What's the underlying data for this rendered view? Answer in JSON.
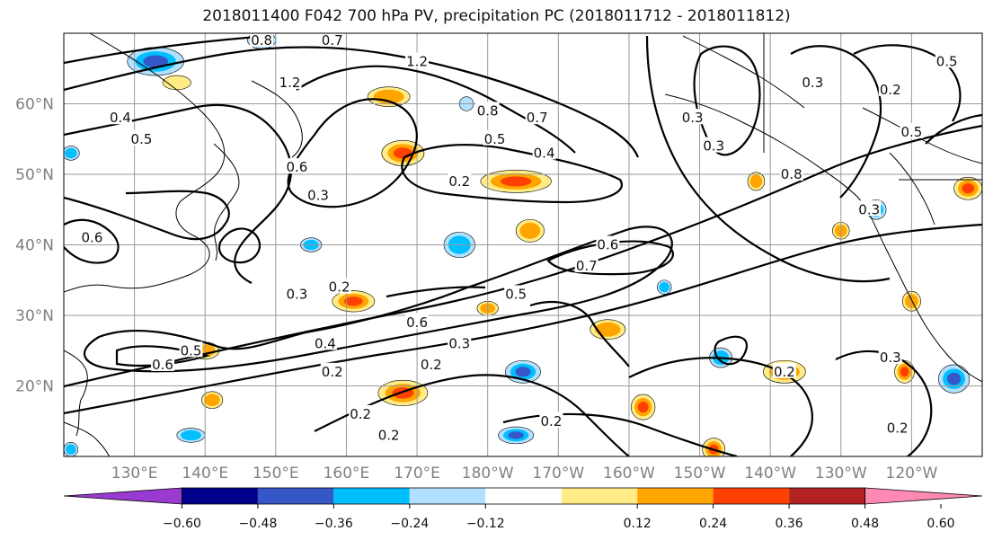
{
  "title": "2018011400 F042 700 hPa PV, precipitation PC (2018011712 - 2018011812)",
  "map": {
    "lat_labels": [
      "60°N",
      "50°N",
      "40°N",
      "30°N",
      "20°N"
    ],
    "lon_labels": [
      "130°E",
      "140°E",
      "150°E",
      "160°E",
      "170°E",
      "180°W",
      "170°W",
      "160°W",
      "150°W",
      "140°W",
      "130°W",
      "120°W"
    ],
    "lon_range": [
      120,
      250
    ],
    "lat_range": [
      10,
      70
    ],
    "gridlines": true,
    "contour_variable": "700 hPa PV",
    "contour_labels": [
      {
        "text": "0.8",
        "lon": 148,
        "lat": 69
      },
      {
        "text": "0.7",
        "lon": 158,
        "lat": 69
      },
      {
        "text": "1.2",
        "lon": 152,
        "lat": 63
      },
      {
        "text": "1.2",
        "lon": 170,
        "lat": 66
      },
      {
        "text": "0.4",
        "lon": 128,
        "lat": 58
      },
      {
        "text": "0.5",
        "lon": 131,
        "lat": 55
      },
      {
        "text": "0.6",
        "lon": 153,
        "lat": 51
      },
      {
        "text": "0.3",
        "lon": 156,
        "lat": 47
      },
      {
        "text": "0.6",
        "lon": 124,
        "lat": 41
      },
      {
        "text": "0.3",
        "lon": 153,
        "lat": 33
      },
      {
        "text": "0.2",
        "lon": 159,
        "lat": 34
      },
      {
        "text": "0.6",
        "lon": 170,
        "lat": 29
      },
      {
        "text": "0.3",
        "lon": 176,
        "lat": 26
      },
      {
        "text": "0.2",
        "lon": 176,
        "lat": 49
      },
      {
        "text": "0.8",
        "lon": 180,
        "lat": 59
      },
      {
        "text": "0.7",
        "lon": 187,
        "lat": 58
      },
      {
        "text": "0.5",
        "lon": 181,
        "lat": 55
      },
      {
        "text": "0.4",
        "lon": 188,
        "lat": 53
      },
      {
        "text": "0.6",
        "lon": 197,
        "lat": 40
      },
      {
        "text": "0.7",
        "lon": 194,
        "lat": 37
      },
      {
        "text": "0.5",
        "lon": 184,
        "lat": 33
      },
      {
        "text": "0.2",
        "lon": 162,
        "lat": 16
      },
      {
        "text": "0.4",
        "lon": 157,
        "lat": 26
      },
      {
        "text": "0.5",
        "lon": 138,
        "lat": 25
      },
      {
        "text": "0.6",
        "lon": 134,
        "lat": 23
      },
      {
        "text": "0.2",
        "lon": 158,
        "lat": 22
      },
      {
        "text": "0.2",
        "lon": 172,
        "lat": 23
      },
      {
        "text": "0.2",
        "lon": 166,
        "lat": 13
      },
      {
        "text": "0.2",
        "lon": 189,
        "lat": 15
      },
      {
        "text": "0.3",
        "lon": 209,
        "lat": 58
      },
      {
        "text": "0.3",
        "lon": 212,
        "lat": 54
      },
      {
        "text": "0.8",
        "lon": 223,
        "lat": 50
      },
      {
        "text": "0.3",
        "lon": 234,
        "lat": 45
      },
      {
        "text": "0.3",
        "lon": 226,
        "lat": 63
      },
      {
        "text": "0.2",
        "lon": 237,
        "lat": 62
      },
      {
        "text": "0.5",
        "lon": 245,
        "lat": 66
      },
      {
        "text": "0.5",
        "lon": 240,
        "lat": 56
      },
      {
        "text": "0.2",
        "lon": 222,
        "lat": 22
      },
      {
        "text": "0.3",
        "lon": 237,
        "lat": 24
      },
      {
        "text": "0.2",
        "lon": 238,
        "lat": 14
      }
    ],
    "shading_variable": "precipitation PC",
    "shaded_blobs": [
      {
        "lon": 133,
        "lat": 66,
        "rx": 4,
        "ry": 2,
        "value": -0.4
      },
      {
        "lon": 148,
        "lat": 69,
        "rx": 2,
        "ry": 1.2,
        "value": -0.28
      },
      {
        "lon": 136,
        "lat": 63,
        "rx": 2,
        "ry": 1,
        "value": 0.2
      },
      {
        "lon": 166,
        "lat": 61,
        "rx": 3,
        "ry": 1.4,
        "value": 0.3
      },
      {
        "lon": 168,
        "lat": 53,
        "rx": 3,
        "ry": 1.8,
        "value": 0.4
      },
      {
        "lon": 184,
        "lat": 49,
        "rx": 5,
        "ry": 1.6,
        "value": 0.38
      },
      {
        "lon": 176,
        "lat": 40,
        "rx": 2.2,
        "ry": 1.8,
        "value": -0.3
      },
      {
        "lon": 186,
        "lat": 42,
        "rx": 2,
        "ry": 1.6,
        "value": 0.3
      },
      {
        "lon": 161,
        "lat": 32,
        "rx": 3,
        "ry": 1.5,
        "value": 0.4
      },
      {
        "lon": 155,
        "lat": 40,
        "rx": 1.5,
        "ry": 1,
        "value": -0.26
      },
      {
        "lon": 180,
        "lat": 31,
        "rx": 1.5,
        "ry": 1,
        "value": 0.3
      },
      {
        "lon": 168,
        "lat": 19,
        "rx": 3.5,
        "ry": 1.8,
        "value": 0.42
      },
      {
        "lon": 185,
        "lat": 22,
        "rx": 2.5,
        "ry": 1.6,
        "value": -0.4
      },
      {
        "lon": 140,
        "lat": 25,
        "rx": 2,
        "ry": 1.2,
        "value": 0.28
      },
      {
        "lon": 141,
        "lat": 18,
        "rx": 1.5,
        "ry": 1.2,
        "value": 0.3
      },
      {
        "lon": 138,
        "lat": 13,
        "rx": 2,
        "ry": 1,
        "value": -0.3
      },
      {
        "lon": 184,
        "lat": 13,
        "rx": 2.5,
        "ry": 1.2,
        "value": -0.36
      },
      {
        "lon": 197,
        "lat": 28,
        "rx": 2.5,
        "ry": 1.4,
        "value": 0.28
      },
      {
        "lon": 202,
        "lat": 17,
        "rx": 1.7,
        "ry": 1.8,
        "value": 0.4
      },
      {
        "lon": 212,
        "lat": 11,
        "rx": 1.6,
        "ry": 1.6,
        "value": 0.4
      },
      {
        "lon": 213,
        "lat": 24,
        "rx": 1.6,
        "ry": 1.4,
        "value": -0.3
      },
      {
        "lon": 222,
        "lat": 22,
        "rx": 3,
        "ry": 1.6,
        "value": 0.38
      },
      {
        "lon": 218,
        "lat": 49,
        "rx": 1.2,
        "ry": 1.3,
        "value": 0.28
      },
      {
        "lon": 230,
        "lat": 42,
        "rx": 1.2,
        "ry": 1.2,
        "value": 0.26
      },
      {
        "lon": 235,
        "lat": 45,
        "rx": 1.4,
        "ry": 1.4,
        "value": -0.3
      },
      {
        "lon": 239,
        "lat": 22,
        "rx": 1.4,
        "ry": 1.6,
        "value": 0.38
      },
      {
        "lon": 246,
        "lat": 21,
        "rx": 2.2,
        "ry": 2,
        "value": -0.4
      },
      {
        "lon": 248,
        "lat": 48,
        "rx": 2,
        "ry": 1.6,
        "value": 0.38
      },
      {
        "lon": 240,
        "lat": 32,
        "rx": 1.3,
        "ry": 1.4,
        "value": 0.28
      },
      {
        "lon": 205,
        "lat": 34,
        "rx": 1,
        "ry": 1,
        "value": -0.24
      },
      {
        "lon": 177,
        "lat": 60,
        "rx": 1,
        "ry": 1,
        "value": -0.22
      },
      {
        "lon": 121,
        "lat": 53,
        "rx": 1.2,
        "ry": 1,
        "value": -0.26
      },
      {
        "lon": 121,
        "lat": 11,
        "rx": 1,
        "ry": 1,
        "value": -0.3
      }
    ]
  },
  "colorbar": {
    "tick_labels": [
      "−0.60",
      "−0.48",
      "−0.36",
      "−0.24",
      "−0.12",
      "0.12",
      "0.24",
      "0.36",
      "0.48",
      "0.60"
    ],
    "colors": [
      "#9a3ad0",
      "#00008b",
      "#3657c8",
      "#00bfff",
      "#b2e1ff",
      "#ffffff",
      "#ffec87",
      "#ffa500",
      "#ff4000",
      "#b22222",
      "#ff89b5"
    ]
  }
}
